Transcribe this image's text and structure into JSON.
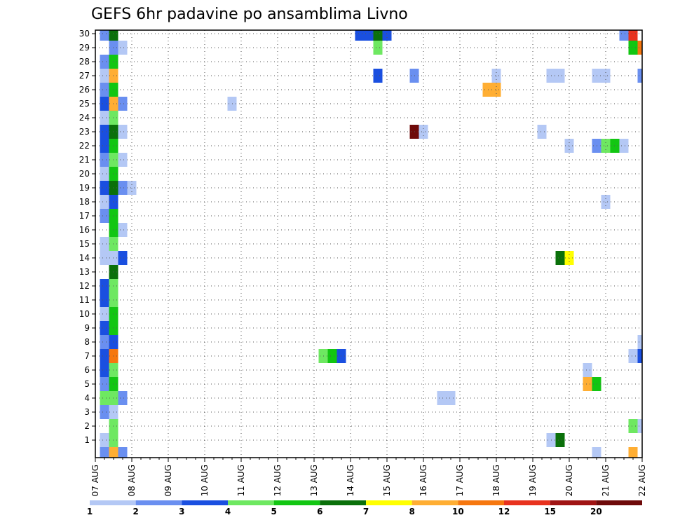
{
  "chart_data": {
    "type": "heatmap",
    "title": "GEFS 6hr padavine po ansamblima Livno",
    "xlabel": "",
    "ylabel": "",
    "x_tick_labels": [
      "07 AUG",
      "08 AUG",
      "09 AUG",
      "10 AUG",
      "11 AUG",
      "12 AUG",
      "13 AUG",
      "14 AUG",
      "15 AUG",
      "16 AUG",
      "17 AUG",
      "18 AUG",
      "19 AUG",
      "20 AUG",
      "21 AUG",
      "22 AUG"
    ],
    "y_tick_labels": [
      "1",
      "2",
      "3",
      "4",
      "5",
      "6",
      "7",
      "8",
      "9",
      "10",
      "11",
      "12",
      "13",
      "14",
      "15",
      "16",
      "17",
      "18",
      "19",
      "20",
      "21",
      "22",
      "23",
      "24",
      "25",
      "26",
      "27",
      "28",
      "29",
      "30"
    ],
    "time_steps_per_day": 4,
    "grid": true,
    "colorbar": {
      "labels": [
        "1",
        "2",
        "3",
        "4",
        "5",
        "6",
        "7",
        "8",
        "10",
        "12",
        "15",
        "20"
      ],
      "colors": [
        "#b4c8f5",
        "#6a8ff0",
        "#1a4fe0",
        "#6ee861",
        "#12c612",
        "#0a700a",
        "#ffff00",
        "#ffae33",
        "#f6770f",
        "#e8321e",
        "#a01414",
        "#6e0a0a"
      ]
    },
    "cells": [
      {
        "m": 1,
        "t": 1,
        "v": 1.5
      },
      {
        "m": 1,
        "t": 2,
        "v": 4.5
      },
      {
        "m": 1,
        "t": 50,
        "v": 1.5
      },
      {
        "m": 1,
        "t": 51,
        "v": 6.5
      },
      {
        "m": 2,
        "t": 2,
        "v": 4.5
      },
      {
        "m": 2,
        "t": 59,
        "v": 4.5
      },
      {
        "m": 2,
        "t": 60,
        "v": 1.5
      },
      {
        "m": 3,
        "t": 1,
        "v": 2.5
      },
      {
        "m": 3,
        "t": 2,
        "v": 1.5
      },
      {
        "m": 4,
        "t": 1,
        "v": 4.5
      },
      {
        "m": 4,
        "t": 2,
        "v": 4.5
      },
      {
        "m": 4,
        "t": 3,
        "v": 2.5
      },
      {
        "m": 4,
        "t": 38,
        "v": 1.5
      },
      {
        "m": 4,
        "t": 39,
        "v": 1.5
      },
      {
        "m": 5,
        "t": 1,
        "v": 2.5
      },
      {
        "m": 5,
        "t": 2,
        "v": 5.5
      },
      {
        "m": 5,
        "t": 54,
        "v": 9
      },
      {
        "m": 5,
        "t": 55,
        "v": 5.5
      },
      {
        "m": 6,
        "t": 1,
        "v": 3.5
      },
      {
        "m": 6,
        "t": 2,
        "v": 4.5
      },
      {
        "m": 6,
        "t": 54,
        "v": 1.5
      },
      {
        "m": 7,
        "t": 1,
        "v": 3.5
      },
      {
        "m": 7,
        "t": 2,
        "v": 11
      },
      {
        "m": 7,
        "t": 25,
        "v": 4.5
      },
      {
        "m": 7,
        "t": 26,
        "v": 5.5
      },
      {
        "m": 7,
        "t": 27,
        "v": 3.5
      },
      {
        "m": 7,
        "t": 59,
        "v": 1.5
      },
      {
        "m": 7,
        "t": 60,
        "v": 3.5
      },
      {
        "m": 8,
        "t": 1,
        "v": 2.5
      },
      {
        "m": 8,
        "t": 2,
        "v": 3.5
      },
      {
        "m": 8,
        "t": 60,
        "v": 1.5
      },
      {
        "m": 9,
        "t": 1,
        "v": 3.5
      },
      {
        "m": 9,
        "t": 2,
        "v": 5.5
      },
      {
        "m": 10,
        "t": 1,
        "v": 1.5
      },
      {
        "m": 10,
        "t": 2,
        "v": 5.5
      },
      {
        "m": 11,
        "t": 1,
        "v": 3.5
      },
      {
        "m": 11,
        "t": 2,
        "v": 4.5
      },
      {
        "m": 12,
        "t": 1,
        "v": 3.5
      },
      {
        "m": 12,
        "t": 2,
        "v": 4.5
      },
      {
        "m": 13,
        "t": 2,
        "v": 6.5
      },
      {
        "m": 14,
        "t": 1,
        "v": 1.5
      },
      {
        "m": 14,
        "t": 2,
        "v": 1.5
      },
      {
        "m": 14,
        "t": 3,
        "v": 3.5
      },
      {
        "m": 14,
        "t": 51,
        "v": 6.5
      },
      {
        "m": 14,
        "t": 52,
        "v": 7.5
      },
      {
        "m": 15,
        "t": 1,
        "v": 1.5
      },
      {
        "m": 15,
        "t": 2,
        "v": 4.5
      },
      {
        "m": 16,
        "t": 2,
        "v": 5.5
      },
      {
        "m": 16,
        "t": 3,
        "v": 1.5
      },
      {
        "m": 17,
        "t": 1,
        "v": 2.5
      },
      {
        "m": 17,
        "t": 2,
        "v": 5.5
      },
      {
        "m": 18,
        "t": 1,
        "v": 1.5
      },
      {
        "m": 18,
        "t": 2,
        "v": 3.5
      },
      {
        "m": 18,
        "t": 56,
        "v": 1.5
      },
      {
        "m": 19,
        "t": 1,
        "v": 3.5
      },
      {
        "m": 19,
        "t": 2,
        "v": 6.5
      },
      {
        "m": 19,
        "t": 3,
        "v": 2.5
      },
      {
        "m": 19,
        "t": 4,
        "v": 1.5
      },
      {
        "m": 20,
        "t": 1,
        "v": 1.5
      },
      {
        "m": 20,
        "t": 2,
        "v": 5.5
      },
      {
        "m": 21,
        "t": 1,
        "v": 2.5
      },
      {
        "m": 21,
        "t": 2,
        "v": 4.5
      },
      {
        "m": 21,
        "t": 3,
        "v": 1.5
      },
      {
        "m": 22,
        "t": 1,
        "v": 3.5
      },
      {
        "m": 22,
        "t": 2,
        "v": 5.5
      },
      {
        "m": 22,
        "t": 52,
        "v": 1.5
      },
      {
        "m": 22,
        "t": 55,
        "v": 2.5
      },
      {
        "m": 22,
        "t": 56,
        "v": 4.5
      },
      {
        "m": 22,
        "t": 57,
        "v": 5.5
      },
      {
        "m": 22,
        "t": 58,
        "v": 1.5
      },
      {
        "m": 23,
        "t": 1,
        "v": 3.5
      },
      {
        "m": 23,
        "t": 2,
        "v": 6.5
      },
      {
        "m": 23,
        "t": 3,
        "v": 1.5
      },
      {
        "m": 23,
        "t": 35,
        "v": 22
      },
      {
        "m": 23,
        "t": 36,
        "v": 1.5
      },
      {
        "m": 23,
        "t": 49,
        "v": 1.5
      },
      {
        "m": 24,
        "t": 1,
        "v": 1.5
      },
      {
        "m": 24,
        "t": 2,
        "v": 4.5
      },
      {
        "m": 25,
        "t": 1,
        "v": 3.5
      },
      {
        "m": 25,
        "t": 2,
        "v": 9
      },
      {
        "m": 25,
        "t": 3,
        "v": 2.5
      },
      {
        "m": 25,
        "t": 15,
        "v": 1.5
      },
      {
        "m": 26,
        "t": 1,
        "v": 2.5
      },
      {
        "m": 26,
        "t": 2,
        "v": 5.5
      },
      {
        "m": 26,
        "t": 43,
        "v": 9
      },
      {
        "m": 26,
        "t": 44,
        "v": 9
      },
      {
        "m": 27,
        "t": 1,
        "v": 1.5
      },
      {
        "m": 27,
        "t": 2,
        "v": 9
      },
      {
        "m": 27,
        "t": 31,
        "v": 3.5
      },
      {
        "m": 27,
        "t": 35,
        "v": 2.5
      },
      {
        "m": 27,
        "t": 44,
        "v": 1.5
      },
      {
        "m": 27,
        "t": 50,
        "v": 1.5
      },
      {
        "m": 27,
        "t": 51,
        "v": 1.5
      },
      {
        "m": 27,
        "t": 55,
        "v": 1.5
      },
      {
        "m": 27,
        "t": 56,
        "v": 1.5
      },
      {
        "m": 27,
        "t": 60,
        "v": 2.5
      },
      {
        "m": 28,
        "t": 1,
        "v": 2.5
      },
      {
        "m": 28,
        "t": 2,
        "v": 5.5
      },
      {
        "m": 29,
        "t": 2,
        "v": 2.5
      },
      {
        "m": 29,
        "t": 3,
        "v": 1.5
      },
      {
        "m": 29,
        "t": 31,
        "v": 4.5
      },
      {
        "m": 29,
        "t": 59,
        "v": 5.5
      },
      {
        "m": 29,
        "t": 60,
        "v": 11
      },
      {
        "m": 30,
        "t": 1,
        "v": 2.5
      },
      {
        "m": 30,
        "t": 2,
        "v": 6.5
      },
      {
        "m": 30,
        "t": 29,
        "v": 3.5
      },
      {
        "m": 30,
        "t": 30,
        "v": 3.5
      },
      {
        "m": 30,
        "t": 31,
        "v": 6.5
      },
      {
        "m": 30,
        "t": 32,
        "v": 3.5
      },
      {
        "m": 30,
        "t": 58,
        "v": 2.5
      },
      {
        "m": 30,
        "t": 59,
        "v": 13
      },
      {
        "m": 0,
        "t": 1,
        "v": 2.5
      },
      {
        "m": 0,
        "t": 2,
        "v": 9
      },
      {
        "m": 0,
        "t": 3,
        "v": 2.5
      },
      {
        "m": 0,
        "t": 55,
        "v": 1.5
      },
      {
        "m": 0,
        "t": 59,
        "v": 9
      }
    ]
  }
}
